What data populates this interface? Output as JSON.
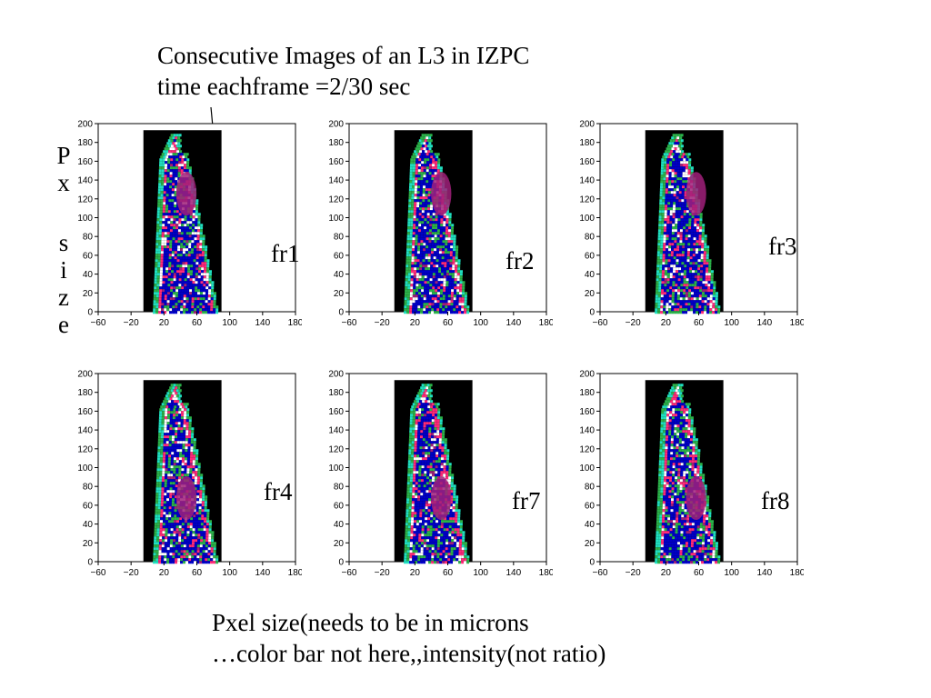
{
  "title": {
    "line1": "Consecutive Images of an L3 in IZPC",
    "line2": "time eachframe =2/30 sec"
  },
  "side_label": {
    "word1": [
      "P",
      "x"
    ],
    "word2": [
      "s",
      "i",
      "z",
      "e"
    ]
  },
  "footer": {
    "line1": "Pxel size(needs to be in microns",
    "line2": "…color bar not here,,intensity(not ratio)"
  },
  "axes": {
    "x_ticks": [
      "−60",
      "−20",
      "20",
      "60",
      "100",
      "140",
      "180"
    ],
    "y_ticks": [
      "0",
      "20",
      "40",
      "60",
      "80",
      "100",
      "120",
      "140",
      "160",
      "180",
      "200"
    ],
    "xlim": [
      -60,
      180
    ],
    "ylim": [
      0,
      200
    ],
    "image_x_range": [
      -5,
      90
    ],
    "image_y_range": [
      0,
      193
    ]
  },
  "colors": {
    "background_image": "#000000",
    "blue": "#0000c8",
    "green": "#2bb24a",
    "pink": "#ff2a7a",
    "cyan": "#20e0c0",
    "white": "#ffffff",
    "magenta": "#a0207a"
  },
  "frames": [
    {
      "label": "fr1"
    },
    {
      "label": "fr2"
    },
    {
      "label": "fr3"
    },
    {
      "label": "fr4"
    },
    {
      "label": "fr7"
    },
    {
      "label": "fr8"
    }
  ]
}
